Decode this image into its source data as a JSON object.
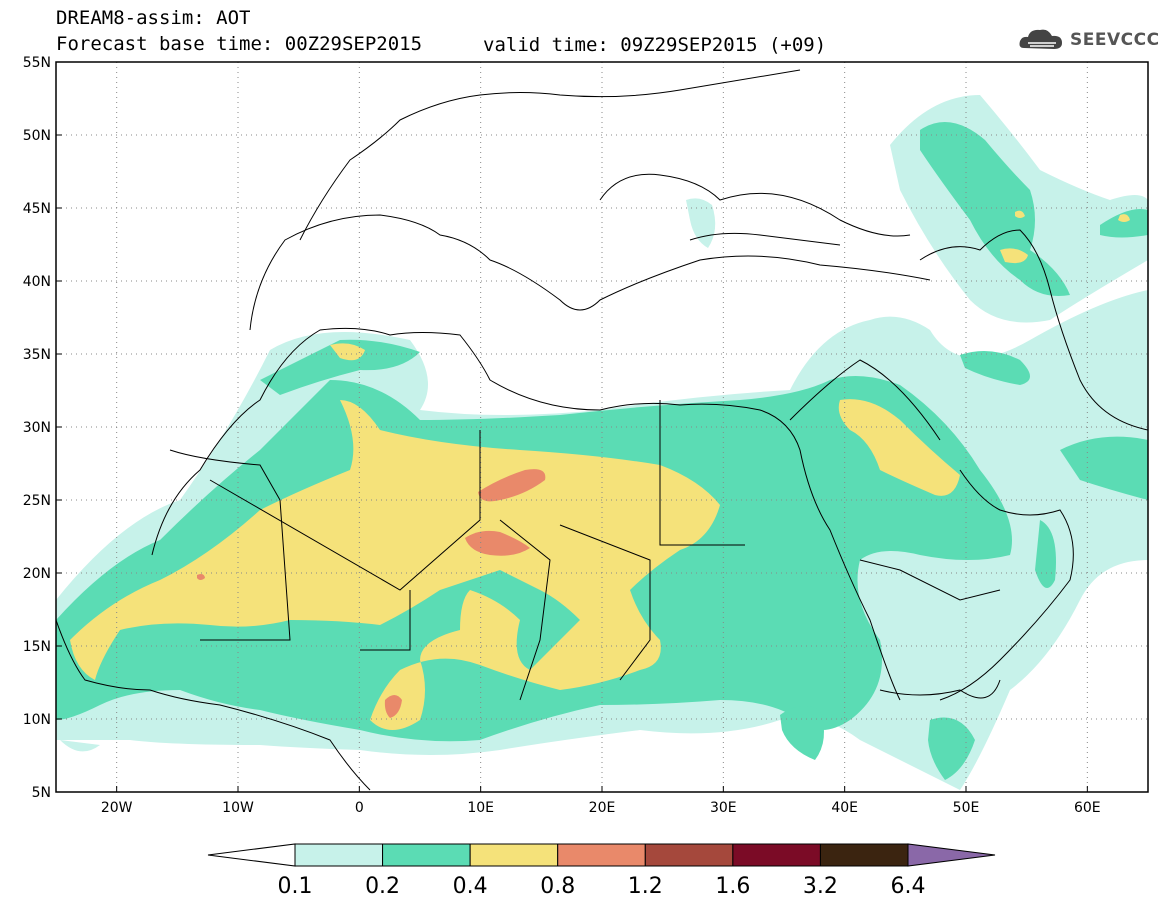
{
  "header": {
    "model_line": "DREAM8-assim: AOT",
    "base_line": "Forecast base time: 00Z29SEP2015",
    "valid_line": "valid time: 09Z29SEP2015 (+09)",
    "logo_text": "SEEVCCC"
  },
  "map": {
    "lat_ticks": [
      "55N",
      "50N",
      "45N",
      "40N",
      "35N",
      "30N",
      "25N",
      "20N",
      "15N",
      "10N",
      "5N"
    ],
    "lon_ticks": [
      "20W",
      "10W",
      "0",
      "10E",
      "20E",
      "30E",
      "40E",
      "50E",
      "60E"
    ],
    "extent": {
      "lon_min": -25,
      "lon_max": 65,
      "lat_min": 5,
      "lat_max": 55
    }
  },
  "colorbar": {
    "labels": [
      "0.1",
      "0.2",
      "0.4",
      "0.8",
      "1.2",
      "1.6",
      "3.2",
      "6.4"
    ],
    "colors": [
      "#ffffff",
      "#c7f2ea",
      "#5bdcb4",
      "#f5e27a",
      "#e9896a",
      "#a5483c",
      "#7b0b26",
      "#3b2410",
      "#8a68a8"
    ]
  }
}
